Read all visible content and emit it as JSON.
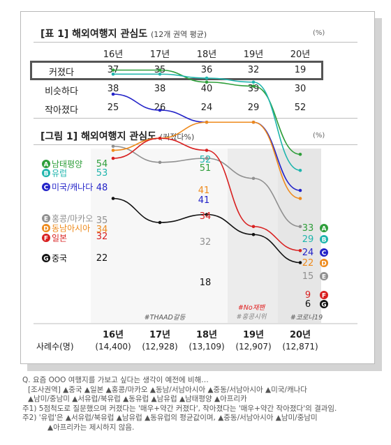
{
  "table": {
    "title": "[표 1] 해외여행지 관심도",
    "subtitle": "(12개 권역 평균)",
    "unit": "(%)",
    "years": [
      "16년",
      "17년",
      "18년",
      "19년",
      "20년"
    ],
    "rows": [
      {
        "label": "커졌다",
        "values": [
          "37",
          "35",
          "36",
          "32",
          "19"
        ]
      },
      {
        "label": "비슷하다",
        "values": [
          "38",
          "38",
          "40",
          "39",
          "30"
        ]
      },
      {
        "label": "작아졌다",
        "values": [
          "25",
          "26",
          "24",
          "29",
          "52"
        ]
      }
    ]
  },
  "figure": {
    "title": "[그림 1] 해외여행지 관심도",
    "subtitle": "(커졌다%)",
    "unit": "(%)",
    "sample_label": "사례수(명)",
    "sample_sizes": [
      "(14,400)",
      "(12,928)",
      "(13,109)",
      "(12,907)",
      "(12,871)"
    ],
    "events": [
      {
        "text": "#THAAD갈등",
        "color": "#555555"
      },
      {
        "text": "#No재팬",
        "color": "#e02020"
      },
      {
        "text": "#홍콩시위",
        "color": "#888888"
      },
      {
        "text": "#코로나19",
        "color": "#555555"
      }
    ]
  },
  "chart_data": {
    "type": "line",
    "x": [
      "16년",
      "17년",
      "18년",
      "19년",
      "20년"
    ],
    "series": [
      {
        "badge": "A",
        "name": "남태평양",
        "color": "#2e9e3a",
        "values": [
          54,
          54,
          51,
          50,
          33
        ]
      },
      {
        "badge": "B",
        "name": "유럽",
        "color": "#1fb5ad",
        "values": [
          53,
          53,
          52,
          51,
          29
        ]
      },
      {
        "badge": "C",
        "name": "미국/캐나다",
        "color": "#2323c8",
        "values": [
          48,
          44,
          41,
          41,
          24
        ]
      },
      {
        "badge": "E",
        "name": "홍콩/마카오",
        "color": "#909090",
        "values": [
          35,
          31,
          32,
          27,
          15
        ]
      },
      {
        "badge": "D",
        "name": "동남아시아",
        "color": "#ee8a1c",
        "values": [
          34,
          37,
          41,
          41,
          22
        ]
      },
      {
        "badge": "F",
        "name": "일본",
        "color": "#d82020",
        "values": [
          32,
          37,
          34,
          15,
          9
        ]
      },
      {
        "badge": "G",
        "name": "중국",
        "color": "#111111",
        "values": [
          22,
          16,
          18,
          13,
          6
        ]
      }
    ],
    "value_labels": {
      "16년": [
        "54",
        "53",
        "48",
        "35",
        "34",
        "32",
        "22"
      ],
      "18년": [
        "52",
        "51",
        "41",
        "41",
        "34",
        "32",
        "18"
      ],
      "20년": [
        "33",
        "29",
        "24",
        "22",
        "15",
        "9",
        "6"
      ]
    }
  },
  "notes": [
    "Q. 요즘 OOO 여행지를 가보고 싶다는 생각이 예전에 비해…",
    "[조사권역] ▲중국 ▲일본 ▲홍콩/마카오 ▲동남/서남아시아 ▲중동/서남아시아 ▲미국/캐나다",
    "▲남미/중남미 ▲서유럽/북유럽 ▲동유럽 ▲남유럽 ▲남태평양 ▲아프리카",
    "주1) 5점척도로 질문했으며 커졌다는 '매우+약간 커졌다', 작아졌다는 '매우+약간 작아졌다'의 결과임.",
    "주2) '유럽'은 ▲서유럽/북유럽 ▲남유럽 ▲동유럽의 평균값이며, ▲중동/서남아시아 ▲남미/중남미",
    "▲아프리카는 제시하지 않음."
  ]
}
